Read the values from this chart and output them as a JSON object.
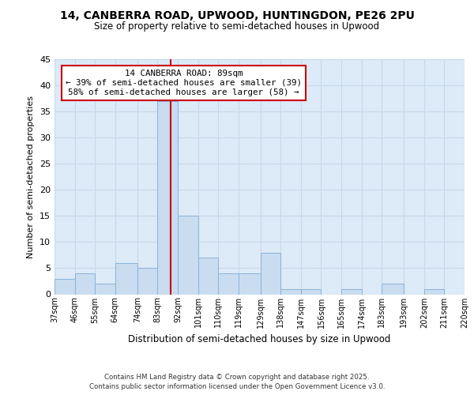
{
  "title1": "14, CANBERRA ROAD, UPWOOD, HUNTINGDON, PE26 2PU",
  "title2": "Size of property relative to semi-detached houses in Upwood",
  "xlabel": "Distribution of semi-detached houses by size in Upwood",
  "ylabel": "Number of semi-detached properties",
  "bin_labels": [
    "37sqm",
    "46sqm",
    "55sqm",
    "64sqm",
    "74sqm",
    "83sqm",
    "92sqm",
    "101sqm",
    "110sqm",
    "119sqm",
    "129sqm",
    "138sqm",
    "147sqm",
    "156sqm",
    "165sqm",
    "174sqm",
    "183sqm",
    "193sqm",
    "202sqm",
    "211sqm",
    "220sqm"
  ],
  "bin_edges": [
    37,
    46,
    55,
    64,
    74,
    83,
    92,
    101,
    110,
    119,
    129,
    138,
    147,
    156,
    165,
    174,
    183,
    193,
    202,
    211,
    220
  ],
  "counts": [
    3,
    4,
    2,
    6,
    5,
    37,
    15,
    7,
    4,
    4,
    8,
    1,
    1,
    0,
    1,
    0,
    2,
    0,
    1,
    0,
    0
  ],
  "bar_color": "#c9dcf0",
  "bar_edge_color": "#8ab4d8",
  "grid_color": "#c8d8ea",
  "bg_color": "#ddeaf7",
  "vline_x": 89,
  "vline_color": "#cc0000",
  "annotation_line1": "14 CANBERRA ROAD: 89sqm",
  "annotation_line2": "← 39% of semi-detached houses are smaller (39)",
  "annotation_line3": "58% of semi-detached houses are larger (58) →",
  "box_linecolor": "#cc0000",
  "ylim": [
    0,
    45
  ],
  "yticks": [
    0,
    5,
    10,
    15,
    20,
    25,
    30,
    35,
    40,
    45
  ],
  "footer1": "Contains HM Land Registry data © Crown copyright and database right 2025.",
  "footer2": "Contains public sector information licensed under the Open Government Licence v3.0."
}
